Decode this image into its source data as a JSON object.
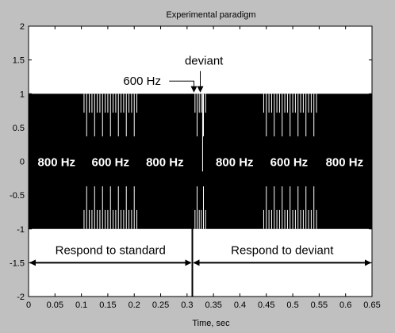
{
  "chart_data": {
    "type": "line",
    "title": "Experimental paradigm",
    "xlabel": "Time, sec",
    "ylabel": "",
    "xlim": [
      0,
      0.65
    ],
    "ylim": [
      -2,
      2
    ],
    "x_ticks": [
      0,
      0.05,
      0.1,
      0.15,
      0.2,
      0.25,
      0.3,
      0.35,
      0.4,
      0.45,
      0.5,
      0.55,
      0.6,
      0.65
    ],
    "x_tick_labels": [
      "0",
      "0.05",
      "0.1",
      "0.15",
      "0.2",
      "0.25",
      "0.3",
      "0.35",
      "0.4",
      "0.45",
      "0.5",
      "0.55",
      "0.6",
      "0.65"
    ],
    "y_ticks": [
      -2,
      -1.5,
      -1,
      -0.5,
      0,
      0.5,
      1,
      1.5,
      2
    ],
    "y_tick_labels": [
      "-2",
      "-1.5",
      "-1",
      "-0.5",
      "0",
      "0.5",
      "1",
      "1.5",
      "2"
    ],
    "grid": false,
    "signal_band": {
      "y_min": -1,
      "y_max": 1,
      "x_min": 0,
      "x_max": 0.65,
      "color": "#000000"
    },
    "tone_bursts": [
      {
        "label": "600 Hz",
        "x_start": 0.105,
        "x_end": 0.205
      },
      {
        "label": "600 Hz",
        "x_start": 0.315,
        "x_end": 0.335
      },
      {
        "label": "600 Hz",
        "x_start": 0.445,
        "x_end": 0.545
      }
    ],
    "segment_labels": [
      {
        "text": "800 Hz",
        "x": 0.053,
        "y": 0
      },
      {
        "text": "600 Hz",
        "x": 0.155,
        "y": 0
      },
      {
        "text": "800 Hz",
        "x": 0.258,
        "y": 0
      },
      {
        "text": "800 Hz",
        "x": 0.39,
        "y": 0
      },
      {
        "text": "600 Hz",
        "x": 0.493,
        "y": 0
      },
      {
        "text": "800 Hz",
        "x": 0.598,
        "y": 0
      }
    ],
    "annotations": [
      {
        "text": "deviant",
        "x": 0.332,
        "y": 1.5,
        "arrow_to": [
          0.325,
          1.03
        ]
      },
      {
        "text": "600 Hz",
        "x": 0.275,
        "y": 1.2,
        "arrow_to": [
          0.313,
          1.03
        ]
      }
    ],
    "divider_x": 0.31,
    "spans": [
      {
        "text": "Respond to standard",
        "x_start": 0,
        "x_end": 0.31,
        "y": -1.5
      },
      {
        "text": "Respond to deviant",
        "x_start": 0.31,
        "x_end": 0.65,
        "y": -1.5
      }
    ],
    "colors": {
      "figure_bg": "#c0c0c0",
      "axes_bg": "#ffffff",
      "ink": "#000000",
      "stripe": "#ffffff"
    }
  }
}
